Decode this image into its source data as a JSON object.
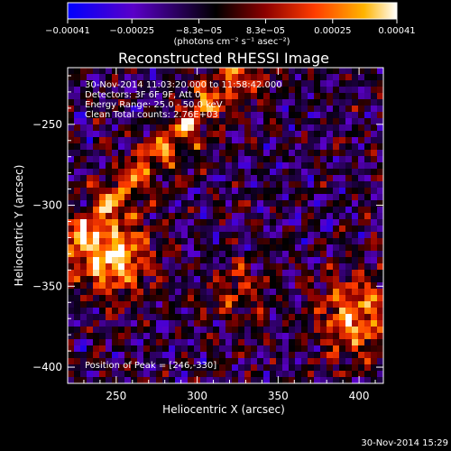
{
  "chart_data": {
    "type": "heatmap",
    "title": "Reconstructed RHESSI Image",
    "xlabel": "Heliocentric X (arcsec)",
    "ylabel": "Heliocentric Y (arcsec)",
    "xlim": [
      220,
      415
    ],
    "ylim": [
      -410,
      -215
    ],
    "xticks": [
      250,
      300,
      350,
      400
    ],
    "xtick_labels": [
      "250",
      "300",
      "350",
      "400"
    ],
    "yticks": [
      -250,
      -300,
      -350,
      -400
    ],
    "ytick_labels": [
      "-250",
      "-300",
      "-350",
      "-400"
    ],
    "colorbar": {
      "range": [
        -0.00041,
        0.00041
      ],
      "tick_values": [
        -0.00041,
        -0.00025,
        -8.3e-05,
        8.3e-05,
        0.00025,
        0.00041
      ],
      "tick_labels": [
        "-0.00041",
        "-0.00025",
        "-8.3e-05",
        "8.3e-05",
        "0.00025",
        "0.00041"
      ],
      "unit_label": "(photons cm⁻² s⁻¹ asec⁻²)",
      "colormap": [
        "#0000ff",
        "#5a00c8",
        "#000000",
        "#8c0000",
        "#ff3c00",
        "#ffb400",
        "#ffffff"
      ]
    },
    "annotations": {
      "time": "30-Nov-2014 11:03:20.000 to 11:58:42.000",
      "detectors": "Detectors: 3F 6F 9F, Att 0",
      "energy": "Energy Range: 25.0 - 50.0 keV",
      "clean": "Clean    Total counts: 2.76E+03",
      "peak": "Position of Peak = [246,-330]"
    },
    "grid": false
  },
  "footer": {
    "timestamp": "30-Nov-2014 15:29"
  }
}
